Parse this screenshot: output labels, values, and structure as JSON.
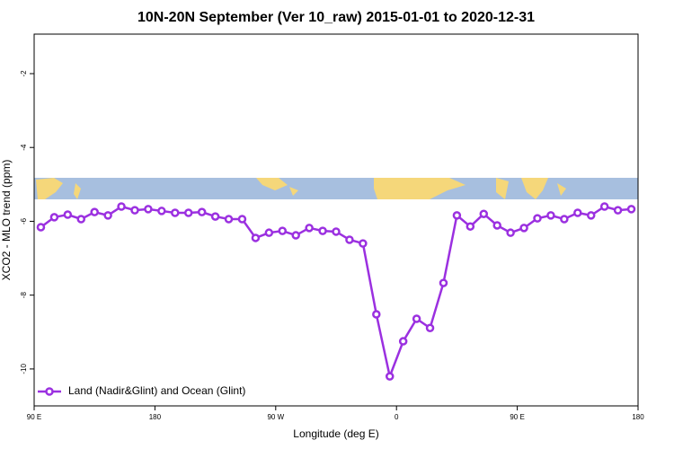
{
  "chart_data": {
    "type": "line",
    "title": "10N-20N September (Ver 10_raw)   2015-01-01 to 2020-12-31",
    "x_label": "Longitude (deg E)",
    "y_label": "XCO2 - MLO trend (ppm)",
    "x": [
      95,
      105,
      115,
      125,
      135,
      145,
      155,
      165,
      175,
      185,
      195,
      205,
      215,
      225,
      235,
      245,
      255,
      265,
      275,
      285,
      295,
      305,
      315,
      325,
      335,
      345,
      355,
      365,
      375,
      385,
      395,
      405,
      415,
      425,
      435,
      445,
      455,
      465,
      475,
      485,
      495,
      505,
      515,
      525,
      535
    ],
    "series": [
      {
        "name": "Land (Nadir&Glint) and Ocean (Glint)",
        "color": "#9b30e0",
        "values": [
          -6.16,
          -5.89,
          -5.82,
          -5.94,
          -5.75,
          -5.84,
          -5.6,
          -5.7,
          -5.67,
          -5.72,
          -5.77,
          -5.77,
          -5.75,
          -5.87,
          -5.94,
          -5.94,
          -6.45,
          -6.31,
          -6.26,
          -6.38,
          -6.18,
          -6.26,
          -6.28,
          -6.5,
          -6.6,
          -8.52,
          -10.2,
          -9.25,
          -8.64,
          -8.89,
          -7.67,
          -5.84,
          -6.14,
          -5.8,
          -6.11,
          -6.31,
          -6.18,
          -5.92,
          -5.84,
          -5.94,
          -5.77,
          -5.84,
          -5.6,
          -5.7,
          -5.67
        ]
      }
    ],
    "xlim": [
      90,
      540
    ],
    "xticks": [
      {
        "value": 90,
        "label": "90 E"
      },
      180,
      {
        "value": 270,
        "label": "90 W"
      },
      {
        "value": 360,
        "label": "0"
      },
      {
        "value": 450,
        "label": "90 E"
      },
      180
    ],
    "ylim": [
      -11.0,
      -0.93
    ],
    "yticks": [
      -2,
      -4,
      -6,
      -8,
      -10
    ],
    "legend": "bottom-left"
  }
}
